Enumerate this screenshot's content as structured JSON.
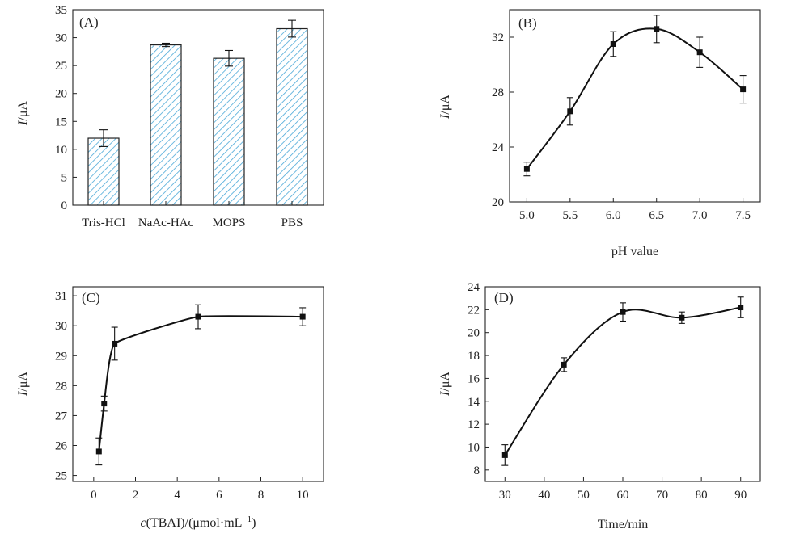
{
  "chart_data": [
    {
      "panel": "(A)",
      "type": "bar",
      "categories": [
        "Tris-HCl",
        "NaAc-HAc",
        "MOPS",
        "PBS"
      ],
      "values": [
        12.0,
        28.7,
        26.3,
        31.6
      ],
      "errors": [
        1.5,
        0.3,
        1.4,
        1.5
      ],
      "xlabel": "",
      "ylabel_italic": "I",
      "ylabel_unit": "/μA",
      "ylim": [
        0,
        35
      ],
      "yticks": [
        0,
        5,
        10,
        15,
        20,
        25,
        30,
        35
      ],
      "hatch_color": "#4aa8d8"
    },
    {
      "panel": "(B)",
      "type": "line",
      "x": [
        5.0,
        5.5,
        6.0,
        6.5,
        7.0,
        7.5
      ],
      "y": [
        22.4,
        26.6,
        31.5,
        32.6,
        30.9,
        28.2
      ],
      "errors": [
        0.5,
        1.0,
        0.9,
        1.0,
        1.1,
        1.0
      ],
      "xlabel": "pH value",
      "ylabel_italic": "I",
      "ylabel_unit": "/μA",
      "xlim": [
        4.8,
        7.7
      ],
      "ylim": [
        20,
        34
      ],
      "xticks": [
        "5.0",
        "5.5",
        "6.0",
        "6.5",
        "7.0",
        "7.5"
      ],
      "yticks": [
        20,
        24,
        28,
        32
      ]
    },
    {
      "panel": "(C)",
      "type": "line",
      "x": [
        0.25,
        0.5,
        1,
        5,
        10
      ],
      "y": [
        25.8,
        27.4,
        29.4,
        30.3,
        30.3
      ],
      "errors": [
        0.45,
        0.25,
        0.55,
        0.4,
        0.3
      ],
      "xlabel_italic": "c",
      "xlabel_rest": "(TBAI)/(μmol·mL",
      "xlabel_sup": "−1",
      "xlabel_close": ")",
      "ylabel_italic": "I",
      "ylabel_unit": "/μA",
      "xlim": [
        -1,
        11
      ],
      "ylim": [
        24.8,
        31.3
      ],
      "xticks": [
        0,
        2,
        4,
        6,
        8,
        10
      ],
      "yticks": [
        25,
        26,
        27,
        28,
        29,
        30,
        31
      ]
    },
    {
      "panel": "(D)",
      "type": "line",
      "x": [
        30,
        45,
        60,
        75,
        90
      ],
      "y": [
        9.3,
        17.2,
        21.8,
        21.3,
        22.2
      ],
      "errors": [
        0.9,
        0.6,
        0.8,
        0.5,
        0.9
      ],
      "xlabel": "Time/min",
      "ylabel_italic": "I",
      "ylabel_unit": "/μA",
      "xlim": [
        25,
        95
      ],
      "ylim": [
        7,
        24
      ],
      "xticks": [
        30,
        40,
        50,
        60,
        70,
        80,
        90
      ],
      "yticks": [
        8,
        10,
        12,
        14,
        16,
        18,
        20,
        22,
        24
      ]
    }
  ]
}
